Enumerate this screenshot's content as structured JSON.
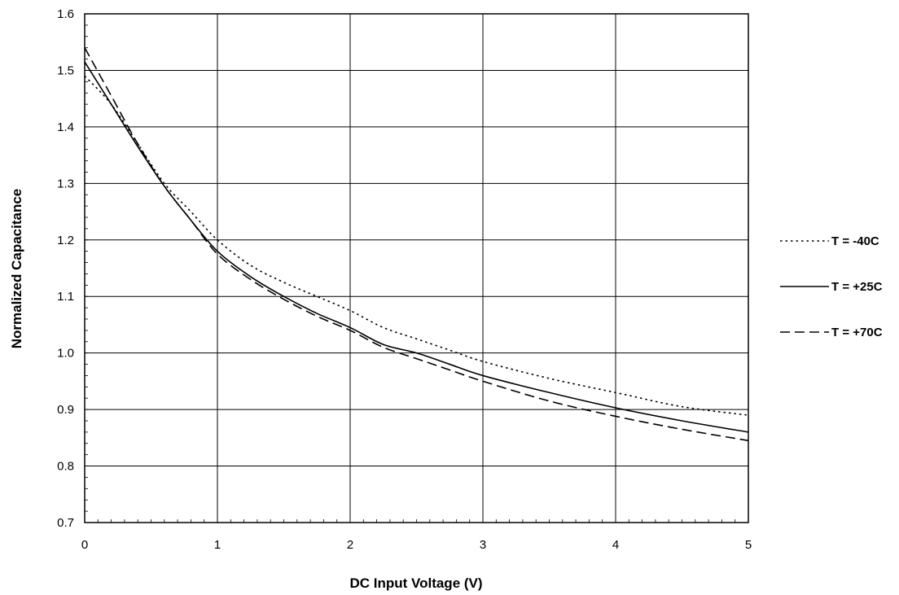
{
  "chart_data": {
    "type": "line",
    "title": "",
    "xlabel": "DC Input Voltage (V)",
    "ylabel": "Normalized Capacitance",
    "xlim": [
      0,
      5
    ],
    "ylim": [
      0.7,
      1.6
    ],
    "x_ticks": [
      "0",
      "1",
      "2",
      "3",
      "4",
      "5"
    ],
    "y_ticks": [
      "0.7",
      "0.8",
      "0.9",
      "1.0",
      "1.1",
      "1.2",
      "1.3",
      "1.4",
      "1.5",
      "1.6"
    ],
    "grid": true,
    "legend_position": "right",
    "series": [
      {
        "name": "T = -40C",
        "dash": "dotted",
        "color": "#000000",
        "x": [
          0,
          0.2,
          0.4,
          0.6,
          0.8,
          1.0,
          1.25,
          1.5,
          1.75,
          2.0,
          2.25,
          2.5,
          2.75,
          3.0,
          3.5,
          4.0,
          4.5,
          5.0
        ],
        "y": [
          1.49,
          1.44,
          1.37,
          1.3,
          1.25,
          1.2,
          1.155,
          1.125,
          1.1,
          1.075,
          1.045,
          1.025,
          1.005,
          0.985,
          0.955,
          0.93,
          0.905,
          0.89
        ]
      },
      {
        "name": "T = +25C",
        "dash": "solid",
        "color": "#000000",
        "x": [
          0,
          0.2,
          0.4,
          0.6,
          0.8,
          1.0,
          1.25,
          1.5,
          1.75,
          2.0,
          2.25,
          2.5,
          2.75,
          3.0,
          3.5,
          4.0,
          4.5,
          5.0
        ],
        "y": [
          1.515,
          1.44,
          1.365,
          1.295,
          1.235,
          1.18,
          1.135,
          1.1,
          1.07,
          1.045,
          1.015,
          1.0,
          0.98,
          0.96,
          0.93,
          0.903,
          0.88,
          0.86
        ]
      },
      {
        "name": "T = +70C",
        "dash": "dashed",
        "color": "#000000",
        "x": [
          0,
          0.2,
          0.4,
          0.6,
          0.8,
          1.0,
          1.25,
          1.5,
          1.75,
          2.0,
          2.25,
          2.5,
          2.75,
          3.0,
          3.5,
          4.0,
          4.5,
          5.0
        ],
        "y": [
          1.54,
          1.455,
          1.37,
          1.295,
          1.235,
          1.175,
          1.13,
          1.095,
          1.065,
          1.04,
          1.01,
          0.99,
          0.97,
          0.95,
          0.915,
          0.888,
          0.865,
          0.845
        ]
      }
    ]
  }
}
